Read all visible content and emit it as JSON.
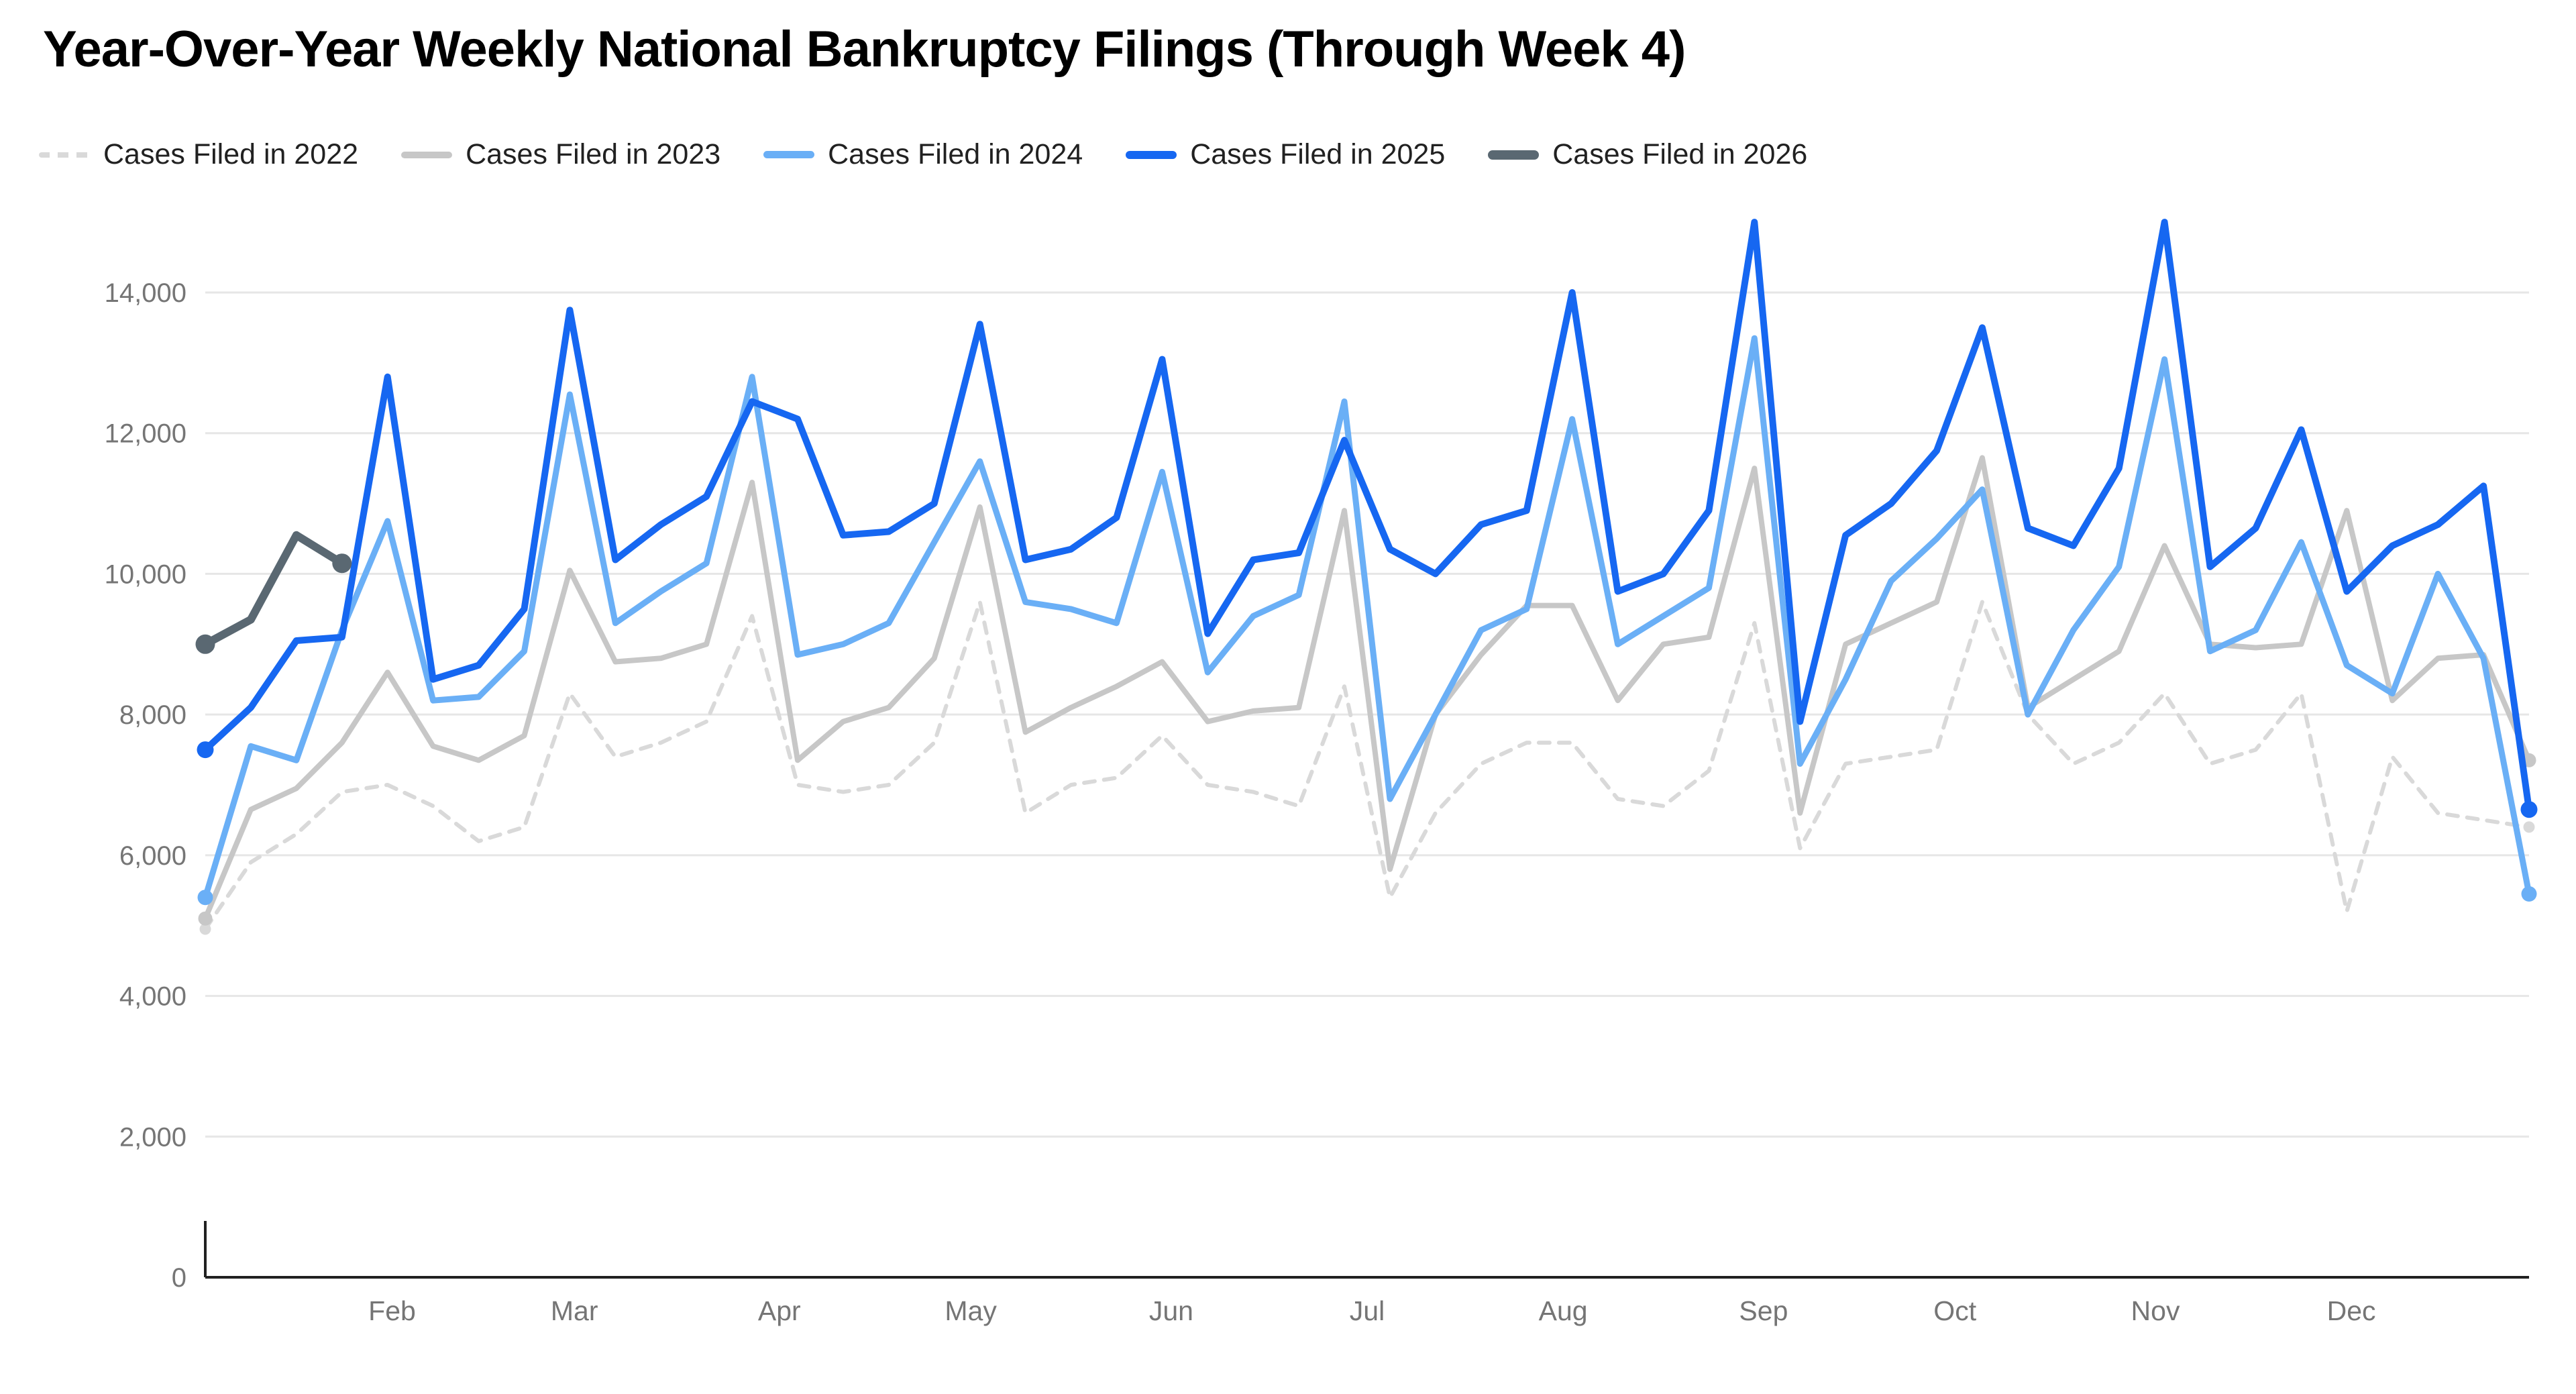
{
  "title": "Year-Over-Year Weekly National Bankruptcy Filings (Through Week 4)",
  "chart_data": {
    "type": "line",
    "title": "Year-Over-Year Weekly National Bankruptcy Filings (Through Week 4)",
    "x_unit": "week of year",
    "weeks": 52,
    "ylim": [
      0,
      15250
    ],
    "grid": true,
    "legend_position": "top",
    "grid_color": "#e6e6e6",
    "axis_color": "#212121",
    "tick_color": "#757575",
    "y_ticks": [
      0,
      2000,
      4000,
      6000,
      8000,
      10000,
      12000,
      14000
    ],
    "y_tick_labels": [
      "0",
      "2,000",
      "4,000",
      "6,000",
      "8,000",
      "10,000",
      "12,000",
      "14,000"
    ],
    "x_ticks": [
      {
        "label": "Feb",
        "week": 5.1
      },
      {
        "label": "Mar",
        "week": 9.1
      },
      {
        "label": "Apr",
        "week": 13.6
      },
      {
        "label": "May",
        "week": 17.8
      },
      {
        "label": "Jun",
        "week": 22.2
      },
      {
        "label": "Jul",
        "week": 26.5
      },
      {
        "label": "Aug",
        "week": 30.8
      },
      {
        "label": "Sep",
        "week": 35.2
      },
      {
        "label": "Oct",
        "week": 39.4
      },
      {
        "label": "Nov",
        "week": 43.8
      },
      {
        "label": "Dec",
        "week": 48.1
      }
    ],
    "series": [
      {
        "id": "2022",
        "name": "Cases Filed in 2022",
        "color": "#d9d9d9",
        "dash": true,
        "width": 6,
        "values": [
          4950,
          5900,
          6300,
          6900,
          7000,
          6700,
          6200,
          6400,
          8300,
          7400,
          7600,
          7900,
          9400,
          7000,
          6900,
          7000,
          7600,
          9600,
          6600,
          7000,
          7100,
          7700,
          7000,
          6900,
          6700,
          8400,
          5400,
          6600,
          7300,
          7600,
          7600,
          6800,
          6700,
          7200,
          9300,
          6100,
          7300,
          7400,
          7500,
          9600,
          8000,
          7300,
          7600,
          8300,
          7300,
          7500,
          8300,
          5200,
          7400,
          6600,
          6500,
          6400
        ]
      },
      {
        "id": "2023",
        "name": "Cases Filed in 2023",
        "color": "#c7c7c7",
        "dash": false,
        "width": 8,
        "values": [
          5100,
          6650,
          6950,
          7600,
          8600,
          7550,
          7350,
          7700,
          10050,
          8750,
          8800,
          9000,
          11300,
          7350,
          7900,
          8100,
          8800,
          10950,
          7750,
          8100,
          8400,
          8750,
          7900,
          8050,
          8100,
          10900,
          5800,
          8000,
          8850,
          9550,
          9550,
          8200,
          9000,
          9100,
          11500,
          6600,
          9000,
          9300,
          9600,
          11650,
          8100,
          8500,
          8900,
          10400,
          9000,
          8950,
          9000,
          10900,
          8200,
          8800,
          8850,
          7350
        ]
      },
      {
        "id": "2024",
        "name": "Cases Filed in 2024",
        "color": "#6aaff6",
        "dash": false,
        "width": 9,
        "values": [
          5400,
          7550,
          7350,
          9200,
          10750,
          8200,
          8250,
          8900,
          12550,
          9300,
          9750,
          10150,
          12800,
          8850,
          9000,
          9300,
          10450,
          11600,
          9600,
          9500,
          9300,
          11450,
          8600,
          9400,
          9700,
          12450,
          6800,
          8000,
          9200,
          9500,
          12200,
          9000,
          9400,
          9800,
          13350,
          7300,
          8500,
          9900,
          10500,
          11200,
          8000,
          9200,
          10100,
          13050,
          8900,
          9200,
          10450,
          8700,
          8300,
          10000,
          8800,
          5450
        ]
      },
      {
        "id": "2025",
        "name": "Cases Filed in 2025",
        "color": "#1667f1",
        "dash": false,
        "width": 10,
        "values": [
          7500,
          8100,
          9050,
          9100,
          12800,
          8500,
          8700,
          9500,
          13750,
          10200,
          10700,
          11100,
          12450,
          12200,
          10550,
          10600,
          11000,
          13550,
          10200,
          10350,
          10800,
          13050,
          9150,
          10200,
          10300,
          11900,
          10350,
          10000,
          10700,
          10900,
          14000,
          9750,
          10000,
          10900,
          15000,
          7900,
          10550,
          11000,
          11750,
          13500,
          10650,
          10400,
          11500,
          15000,
          10100,
          10650,
          12050,
          9750,
          10400,
          10700,
          11250,
          6650
        ]
      },
      {
        "id": "2026",
        "name": "Cases Filed in 2026",
        "color": "#5a6872",
        "dash": false,
        "width": 12,
        "values": [
          9000,
          9350,
          10550,
          10150
        ]
      }
    ]
  }
}
